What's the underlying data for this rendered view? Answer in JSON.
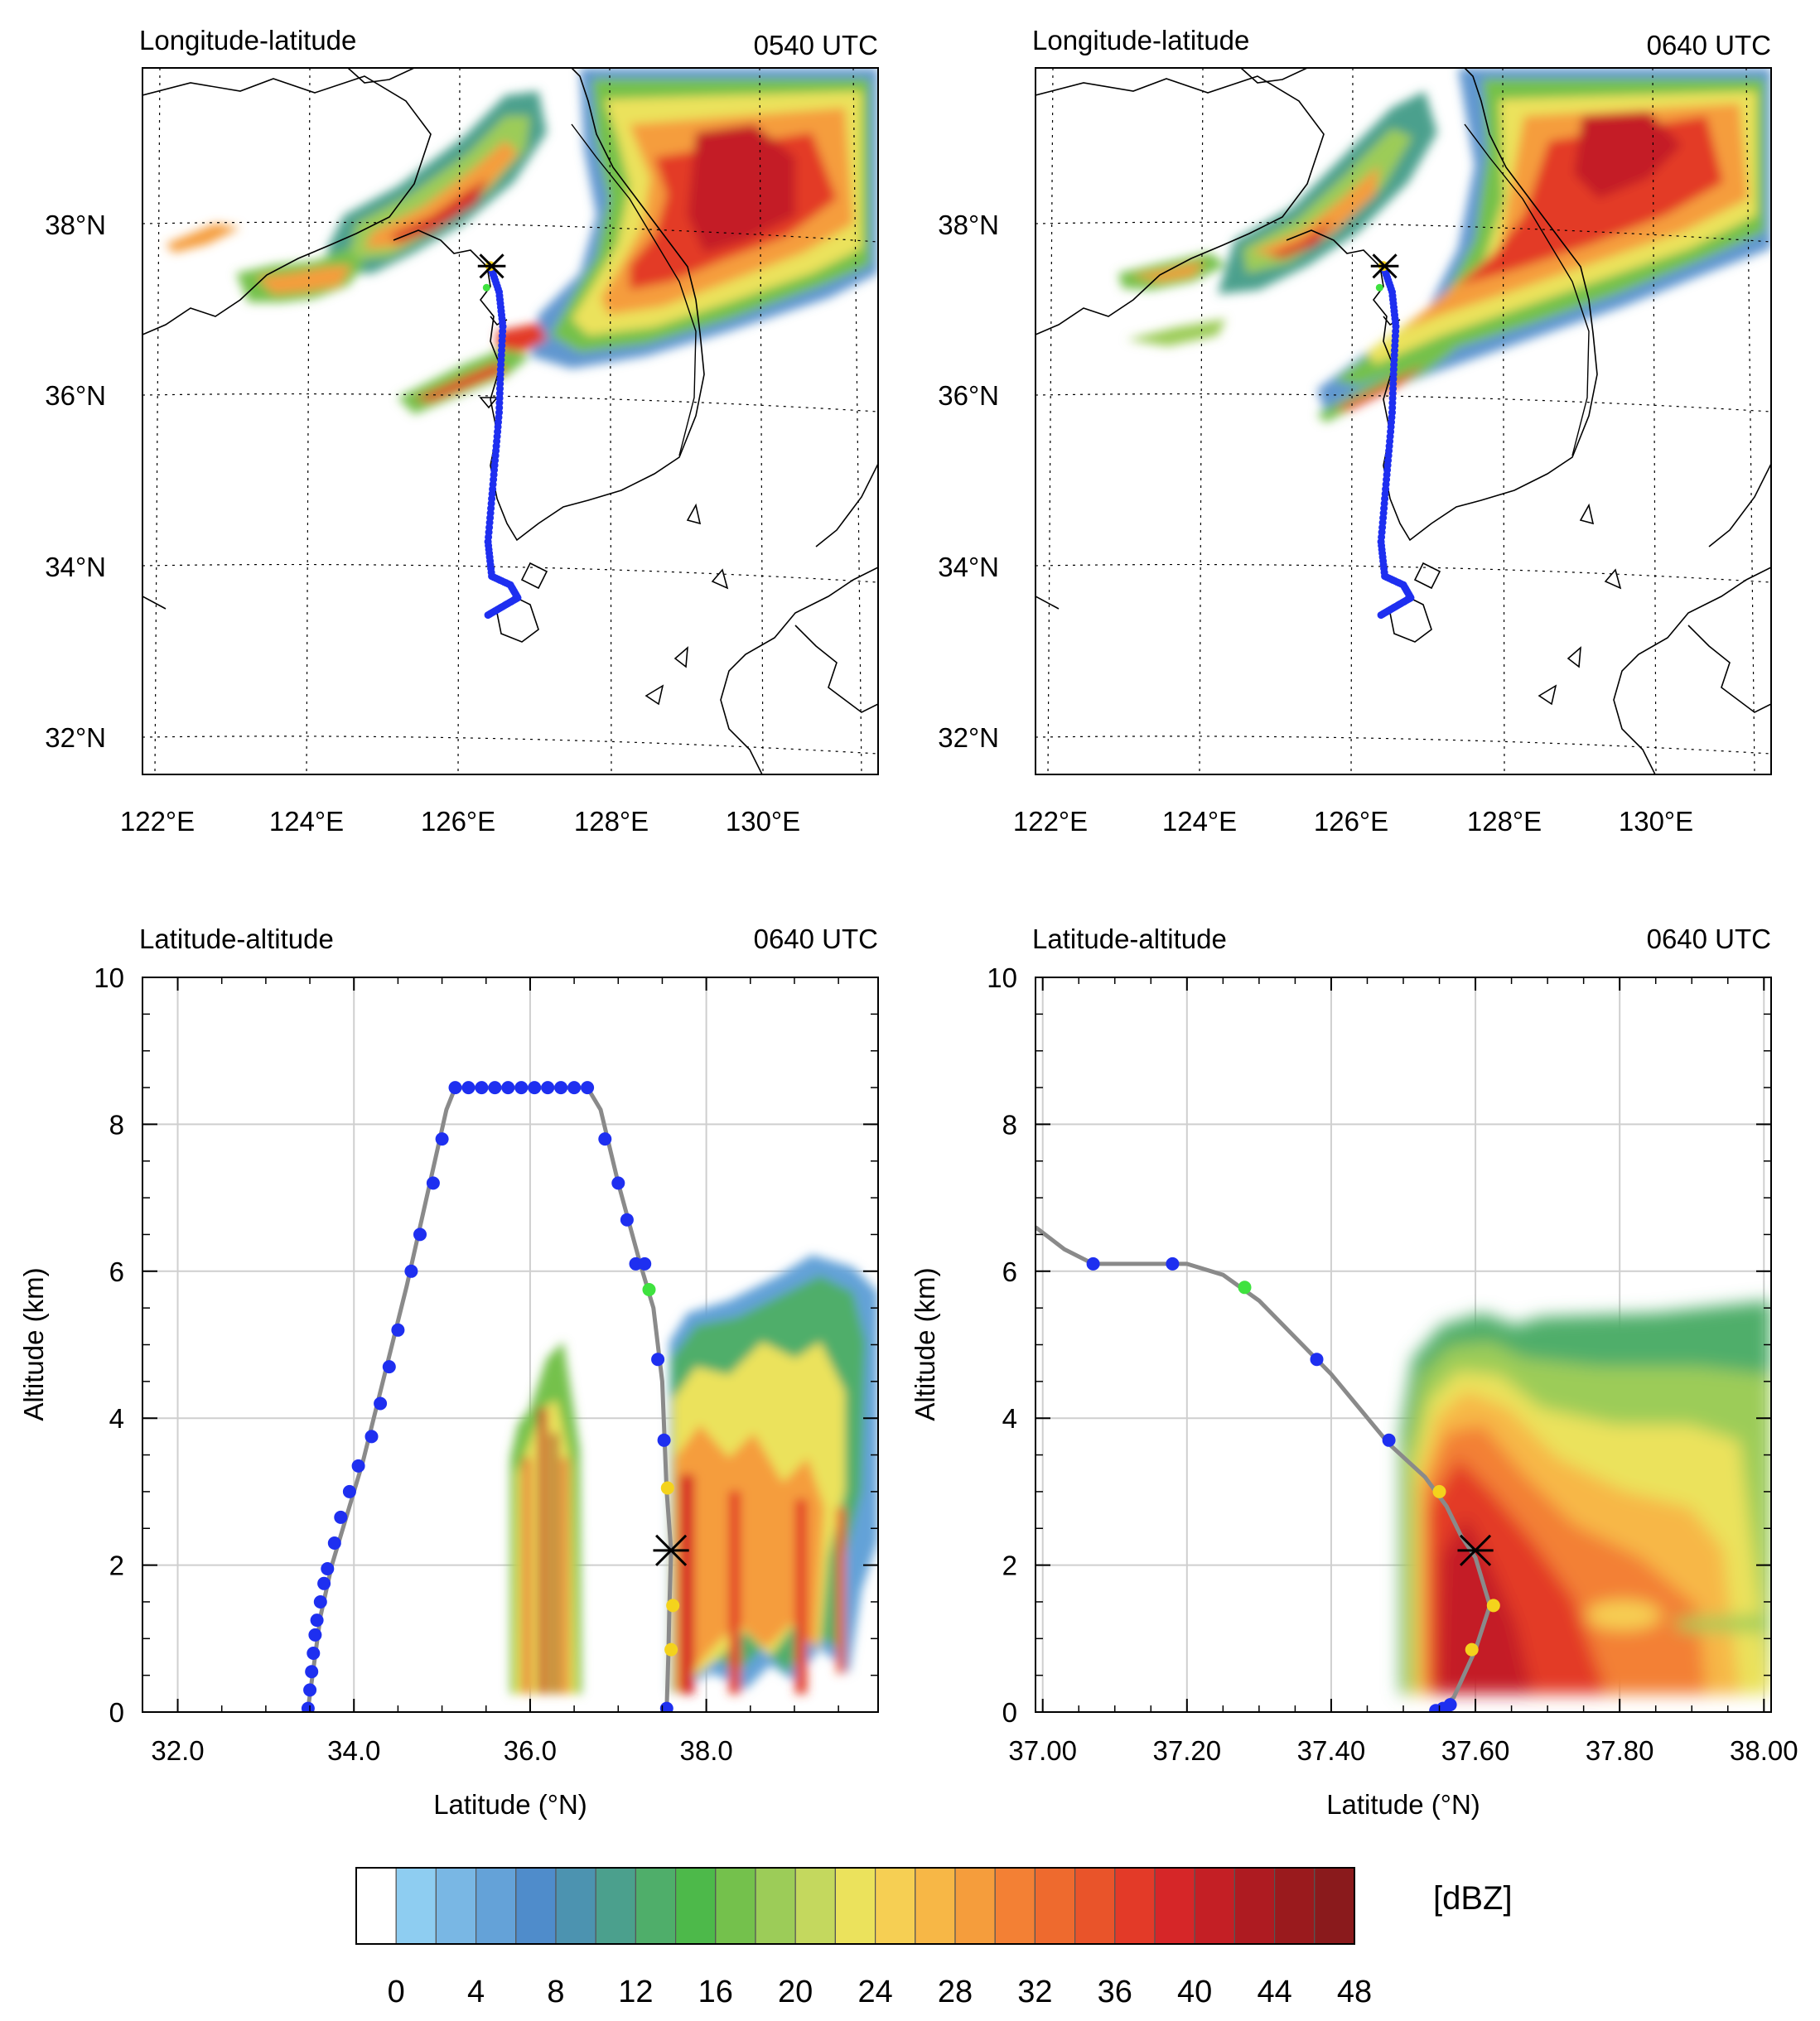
{
  "palette": [
    "#ffffff",
    "#8ecdf1",
    "#79b7e4",
    "#64a2d8",
    "#4f8ccb",
    "#4c93b0",
    "#4ba08d",
    "#4fae6a",
    "#4db94a",
    "#74c14c",
    "#9ccc58",
    "#c4d85e",
    "#ebe25c",
    "#f6cf53",
    "#f7b746",
    "#f59d3c",
    "#f38034",
    "#ee6a2e",
    "#e9542a",
    "#e33a28",
    "#d62628",
    "#c41f25",
    "#ae1b21",
    "#9a1a1d",
    "#8a1a1c"
  ],
  "marker_colors": {
    "blue": "#1e2ff0",
    "green": "#3fe23f",
    "yellow": "#f4d31c",
    "track": "#8a8a8a",
    "cross": "#000000"
  },
  "chart_data": [
    {
      "type": "map",
      "title_left": "Longitude-latitude",
      "title_right": "0540 UTC",
      "lon_ticks": [
        "122°E",
        "124°E",
        "126°E",
        "128°E",
        "130°E"
      ],
      "lat_ticks": [
        "32°N",
        "34°N",
        "36°N",
        "38°N"
      ],
      "lon_range": [
        121.9,
        131.8
      ],
      "lat_range": [
        31.6,
        39.8
      ],
      "trajectory": [
        [
          126.55,
          33.45
        ],
        [
          126.75,
          33.55
        ],
        [
          126.95,
          33.65
        ],
        [
          126.85,
          33.8
        ],
        [
          126.6,
          33.9
        ],
        [
          126.55,
          34.3
        ],
        [
          126.6,
          34.8
        ],
        [
          126.65,
          35.3
        ],
        [
          126.7,
          35.8
        ],
        [
          126.72,
          36.3
        ],
        [
          126.75,
          36.8
        ],
        [
          126.7,
          37.2
        ],
        [
          126.58,
          37.5
        ]
      ],
      "cross_at": [
        126.6,
        37.5
      ]
    },
    {
      "type": "map",
      "title_left": "Longitude-latitude",
      "title_right": "0640 UTC",
      "lon_ticks": [
        "122°E",
        "124°E",
        "126°E",
        "128°E",
        "130°E"
      ],
      "lat_ticks": [
        "32°N",
        "34°N",
        "36°N",
        "38°N"
      ],
      "lon_range": [
        121.9,
        131.8
      ],
      "lat_range": [
        31.6,
        39.8
      ],
      "trajectory": [
        [
          126.55,
          33.45
        ],
        [
          126.75,
          33.55
        ],
        [
          126.95,
          33.65
        ],
        [
          126.85,
          33.8
        ],
        [
          126.6,
          33.9
        ],
        [
          126.55,
          34.3
        ],
        [
          126.6,
          34.8
        ],
        [
          126.65,
          35.3
        ],
        [
          126.7,
          35.8
        ],
        [
          126.72,
          36.3
        ],
        [
          126.75,
          36.8
        ],
        [
          126.7,
          37.2
        ],
        [
          126.58,
          37.5
        ]
      ],
      "cross_at": [
        126.6,
        37.5
      ]
    },
    {
      "type": "line",
      "title_left": "Latitude-altitude",
      "title_right": "0640 UTC",
      "xlabel": "Latitude (°N)",
      "ylabel": "Altitude (km)",
      "xlim": [
        31.6,
        39.95
      ],
      "ylim": [
        0,
        10
      ],
      "x_ticks": [
        32.0,
        34.0,
        36.0,
        38.0
      ],
      "x_tick_labels": [
        "32.0",
        "34.0",
        "36.0",
        "38.0"
      ],
      "y_ticks": [
        0,
        2,
        4,
        6,
        8,
        10
      ],
      "y_tick_labels": [
        "0",
        "2",
        "4",
        "6",
        "8",
        "10"
      ],
      "track": [
        [
          33.48,
          0.05
        ],
        [
          33.62,
          1.3
        ],
        [
          33.75,
          2.0
        ],
        [
          34.1,
          3.4
        ],
        [
          34.6,
          5.8
        ],
        [
          35.05,
          8.2
        ],
        [
          35.15,
          8.5
        ],
        [
          36.65,
          8.5
        ],
        [
          36.8,
          8.2
        ],
        [
          37.0,
          7.2
        ],
        [
          37.25,
          6.1
        ],
        [
          37.4,
          5.5
        ],
        [
          37.5,
          4.5
        ],
        [
          37.55,
          3.0
        ],
        [
          37.6,
          2.2
        ],
        [
          37.58,
          1.4
        ],
        [
          37.57,
          0.8
        ],
        [
          37.55,
          0.05
        ]
      ],
      "points_blue": [
        [
          33.48,
          0.05
        ],
        [
          33.5,
          0.3
        ],
        [
          33.52,
          0.55
        ],
        [
          33.54,
          0.8
        ],
        [
          33.56,
          1.05
        ],
        [
          33.58,
          1.25
        ],
        [
          33.62,
          1.5
        ],
        [
          33.66,
          1.75
        ],
        [
          33.7,
          1.95
        ],
        [
          33.78,
          2.3
        ],
        [
          33.85,
          2.65
        ],
        [
          33.95,
          3.0
        ],
        [
          34.05,
          3.35
        ],
        [
          34.2,
          3.75
        ],
        [
          34.3,
          4.2
        ],
        [
          34.4,
          4.7
        ],
        [
          34.5,
          5.2
        ],
        [
          34.65,
          6.0
        ],
        [
          34.75,
          6.5
        ],
        [
          34.9,
          7.2
        ],
        [
          35.0,
          7.8
        ],
        [
          35.15,
          8.5
        ],
        [
          35.3,
          8.5
        ],
        [
          35.45,
          8.5
        ],
        [
          35.6,
          8.5
        ],
        [
          35.75,
          8.5
        ],
        [
          35.9,
          8.5
        ],
        [
          36.05,
          8.5
        ],
        [
          36.2,
          8.5
        ],
        [
          36.35,
          8.5
        ],
        [
          36.5,
          8.5
        ],
        [
          36.65,
          8.5
        ],
        [
          36.85,
          7.8
        ],
        [
          37.0,
          7.2
        ],
        [
          37.1,
          6.7
        ],
        [
          37.2,
          6.1
        ],
        [
          37.3,
          6.1
        ],
        [
          37.45,
          4.8
        ],
        [
          37.52,
          3.7
        ],
        [
          37.55,
          0.05
        ]
      ],
      "points_green": [
        [
          37.35,
          5.75
        ]
      ],
      "points_yellow": [
        [
          37.56,
          3.05
        ],
        [
          37.62,
          1.45
        ],
        [
          37.6,
          0.85
        ]
      ],
      "cross_at": [
        37.6,
        2.2
      ]
    },
    {
      "type": "line",
      "title_left": "Latitude-altitude",
      "title_right": "0640 UTC",
      "xlabel": "Latitude (°N)",
      "ylabel": "Altitude (km)",
      "xlim": [
        36.99,
        38.01
      ],
      "ylim": [
        0,
        10
      ],
      "x_ticks": [
        37.0,
        37.2,
        37.4,
        37.6,
        37.8,
        38.0
      ],
      "x_tick_labels": [
        "37.00",
        "37.20",
        "37.40",
        "37.60",
        "37.80",
        "38.00"
      ],
      "y_ticks": [
        0,
        2,
        4,
        6,
        8,
        10
      ],
      "y_tick_labels": [
        "0",
        "2",
        "4",
        "6",
        "8",
        "10"
      ],
      "track": [
        [
          36.99,
          6.6
        ],
        [
          37.03,
          6.3
        ],
        [
          37.07,
          6.1
        ],
        [
          37.2,
          6.1
        ],
        [
          37.25,
          5.95
        ],
        [
          37.3,
          5.6
        ],
        [
          37.4,
          4.6
        ],
        [
          37.48,
          3.65
        ],
        [
          37.53,
          3.2
        ],
        [
          37.56,
          2.8
        ],
        [
          37.58,
          2.4
        ],
        [
          37.6,
          2.1
        ],
        [
          37.62,
          1.45
        ],
        [
          37.6,
          0.85
        ],
        [
          37.57,
          0.2
        ],
        [
          37.55,
          0.05
        ]
      ],
      "points_blue": [
        [
          37.07,
          6.1
        ],
        [
          37.18,
          6.1
        ],
        [
          37.38,
          4.8
        ],
        [
          37.48,
          3.7
        ],
        [
          37.545,
          0.02
        ],
        [
          37.555,
          0.05
        ],
        [
          37.565,
          0.1
        ]
      ],
      "points_green": [
        [
          37.28,
          5.78
        ]
      ],
      "points_yellow": [
        [
          37.55,
          3.0
        ],
        [
          37.625,
          1.45
        ],
        [
          37.595,
          0.85
        ]
      ],
      "cross_at": [
        37.6,
        2.2
      ]
    }
  ],
  "colorbar": {
    "unit": "[dBZ]",
    "labels": [
      "0",
      "4",
      "8",
      "12",
      "16",
      "20",
      "24",
      "28",
      "32",
      "36",
      "40",
      "44",
      "48"
    ]
  }
}
